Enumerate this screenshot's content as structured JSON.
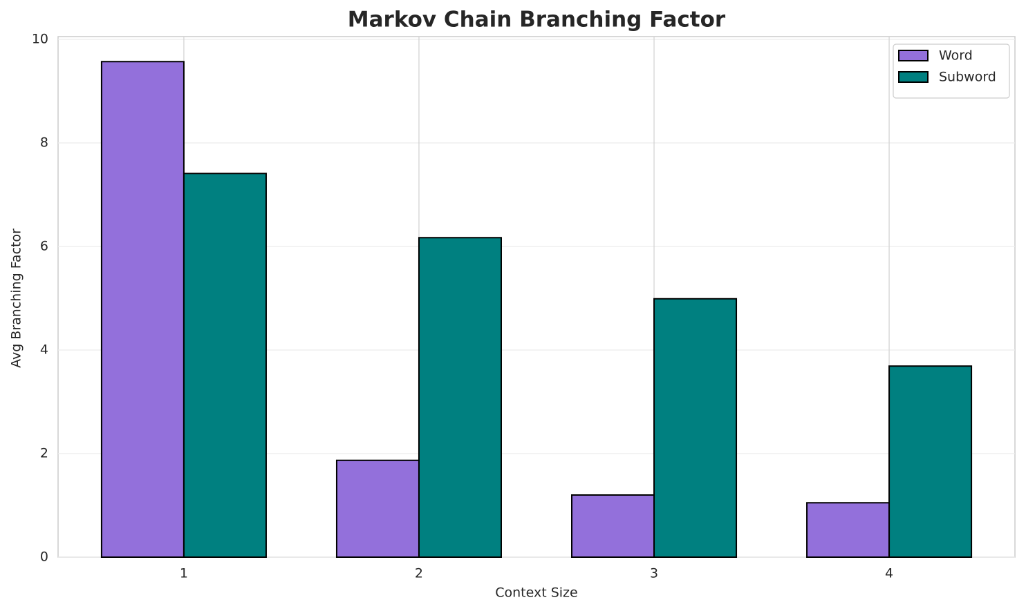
{
  "chart_data": {
    "type": "bar",
    "title": "Markov Chain Branching Factor",
    "x_label": "Context Size",
    "y_label": "Avg Branching Factor",
    "categories": [
      "1",
      "2",
      "3",
      "4"
    ],
    "series": [
      {
        "name": "Word",
        "color": "#9370db",
        "values": [
          9.57,
          1.87,
          1.2,
          1.05
        ]
      },
      {
        "name": "Subword",
        "color": "#008080",
        "values": [
          7.41,
          6.17,
          4.99,
          3.69
        ]
      }
    ],
    "ylim": [
      0,
      10
    ],
    "yticks": [
      0,
      2,
      4,
      6,
      8,
      10
    ],
    "grid": true,
    "legend": "upper right"
  }
}
